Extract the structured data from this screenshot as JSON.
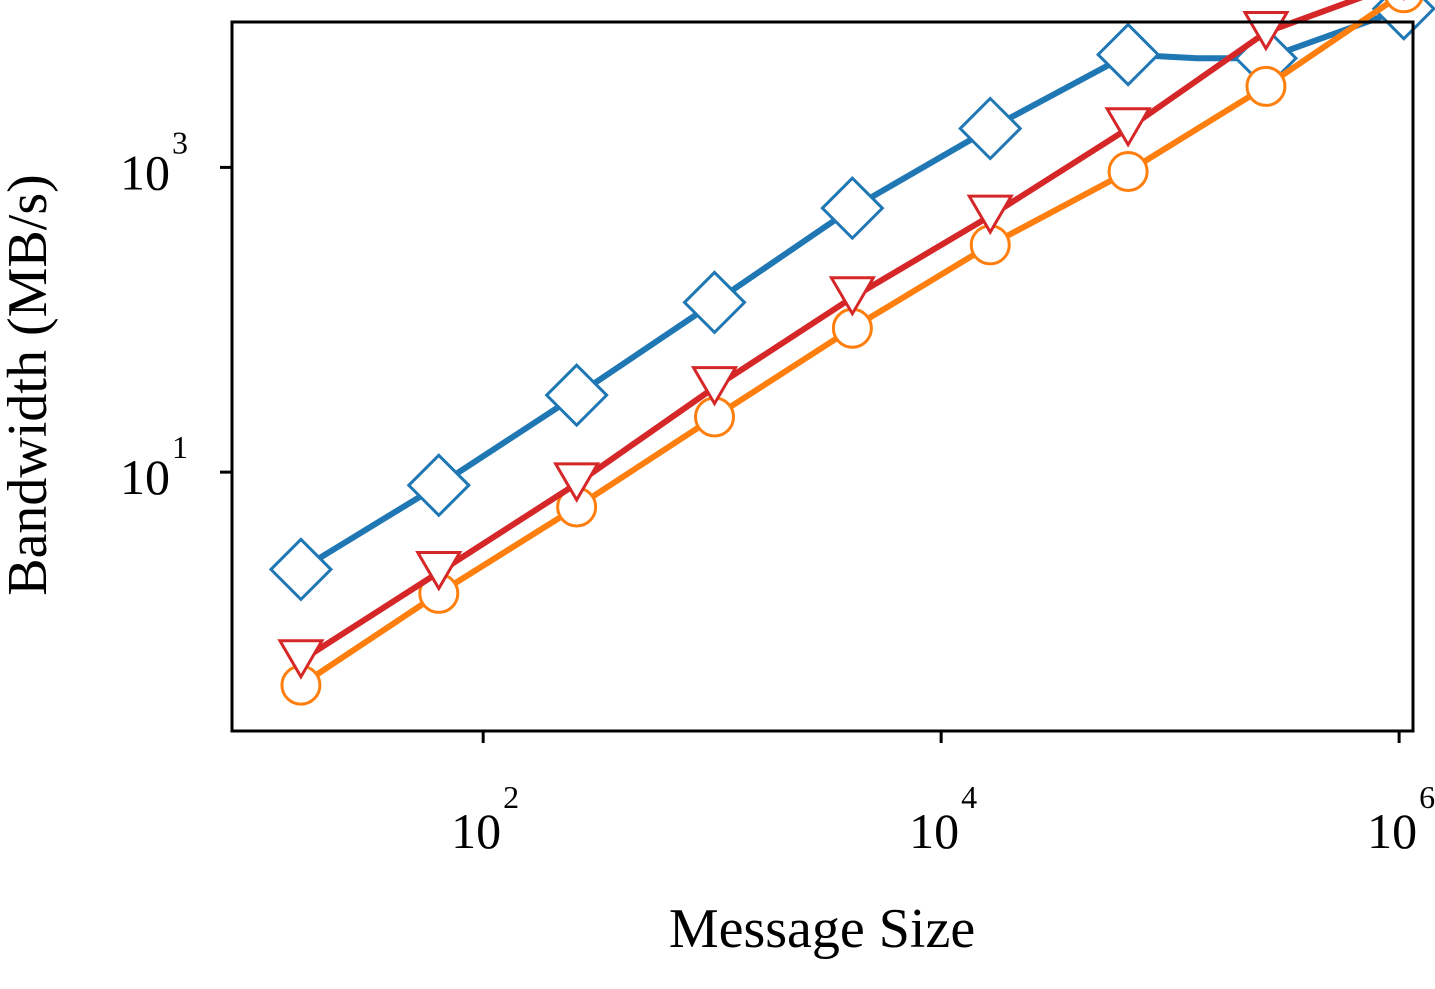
{
  "chart_data": {
    "type": "line",
    "title": "",
    "xlabel": "Message Size",
    "ylabel": "Bandwidth (MB/s)",
    "x_scale": "log",
    "y_scale": "log",
    "xlim": [
      8,
      1150000
    ],
    "ylim": [
      0.2,
      9000
    ],
    "x_ticks": [
      {
        "value": 100,
        "base": "10",
        "exp": "2"
      },
      {
        "value": 10000,
        "base": "10",
        "exp": "4"
      },
      {
        "value": 1000000,
        "base": "10",
        "exp": "6"
      }
    ],
    "y_ticks": [
      {
        "value": 10,
        "base": "10",
        "exp": "1"
      },
      {
        "value": 1000,
        "base": "10",
        "exp": "3"
      }
    ],
    "grid": false,
    "legend": "none",
    "series": [
      {
        "color": "#1f77b4",
        "marker": "diamond",
        "x": [
          16,
          64,
          256,
          1024,
          4096,
          16384,
          65536,
          131072,
          262144,
          1048576
        ],
        "y": [
          2.3,
          8.2,
          32,
          130,
          540,
          1800,
          5500,
          5200,
          5200,
          11000
        ]
      },
      {
        "color": "#ff7f0e",
        "marker": "circle",
        "x": [
          16,
          64,
          256,
          1024,
          4096,
          16384,
          65536,
          262144,
          1048576
        ],
        "y": [
          0.4,
          1.6,
          5.9,
          23,
          88,
          310,
          940,
          3400,
          14000
        ]
      },
      {
        "color": "#d62728",
        "marker": "triangle-down",
        "x": [
          16,
          64,
          256,
          1024,
          4096,
          16384,
          65536,
          262144,
          1048576
        ],
        "y": [
          0.58,
          2.2,
          8.4,
          36,
          140,
          480,
          1800,
          7700,
          16500
        ]
      }
    ]
  }
}
